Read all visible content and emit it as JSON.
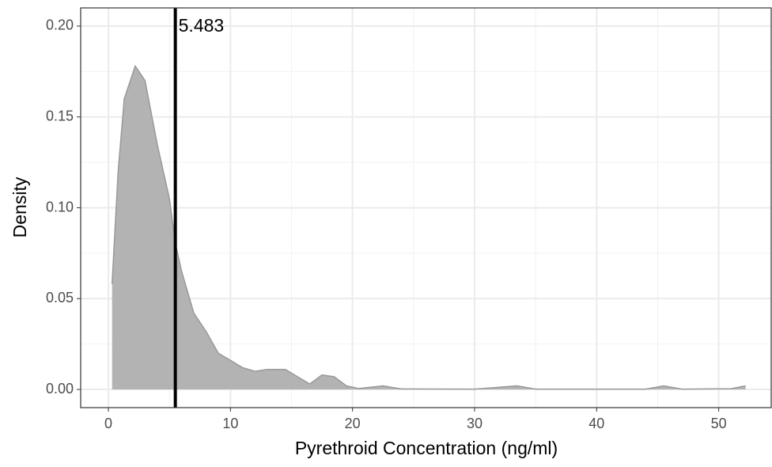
{
  "chart_data": {
    "type": "density",
    "x_label": "Pyrethroid Concentration (ng/ml)",
    "y_label": "Density",
    "x": [
      0.3,
      0.8,
      1.3,
      2.2,
      3,
      4,
      5,
      5.5,
      6,
      7,
      8,
      9,
      10,
      11,
      12,
      13,
      14.5,
      15.5,
      16.5,
      17.5,
      18.5,
      19.5,
      20.5,
      22.5,
      24,
      30,
      33.5,
      35,
      44,
      45.5,
      47,
      51,
      52.2
    ],
    "values": [
      0.058,
      0.12,
      0.16,
      0.178,
      0.17,
      0.135,
      0.105,
      0.08,
      0.065,
      0.042,
      0.032,
      0.02,
      0.016,
      0.012,
      0.01,
      0.011,
      0.011,
      0.007,
      0.003,
      0.008,
      0.007,
      0.002,
      0.0005,
      0.002,
      0.0003,
      0.0002,
      0.002,
      0.0002,
      0.0002,
      0.002,
      0.0002,
      0.0004,
      0.002
    ],
    "color": "#b3b3b3",
    "line_color": "#999999",
    "vline": 5.483,
    "xlim": [
      -2.27,
      54.3
    ],
    "ylim": [
      -0.01,
      0.21
    ],
    "xticks": [
      0,
      10,
      20,
      30,
      40,
      50
    ],
    "yticks": [
      {
        "value": 0,
        "label": "0.00"
      },
      {
        "value": 0.05,
        "label": "0.05"
      },
      {
        "value": 0.1,
        "label": "0.10"
      },
      {
        "value": 0.15,
        "label": "0.15"
      },
      {
        "value": 0.2,
        "label": "0.20"
      }
    ],
    "xminor": [
      5,
      15,
      25,
      35,
      45
    ],
    "yminor": [
      0.025,
      0.075,
      0.125,
      0.175
    ],
    "grid": true
  }
}
